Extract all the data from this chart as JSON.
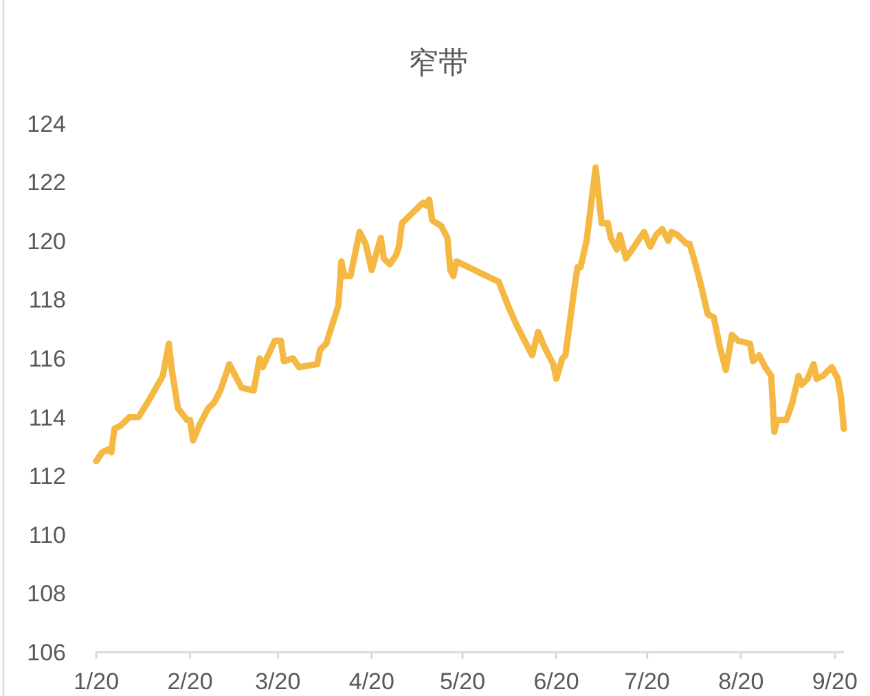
{
  "chart_data": {
    "type": "line",
    "title": "窄带",
    "x": [
      "2020-01-01",
      "2020-01-03",
      "2020-01-05",
      "2020-01-06",
      "2020-01-07",
      "2020-01-09",
      "2020-01-12",
      "2020-01-15",
      "2020-01-18",
      "2020-01-23",
      "2020-01-25",
      "2020-01-26",
      "2020-01-28",
      "2020-01-31",
      "2020-02-01",
      "2020-02-02",
      "2020-02-04",
      "2020-02-07",
      "2020-02-09",
      "2020-02-11",
      "2020-02-14",
      "2020-02-18",
      "2020-02-22",
      "2020-02-24",
      "2020-02-25",
      "2020-02-29",
      "2020-03-02",
      "2020-03-03",
      "2020-03-06",
      "2020-03-08",
      "2020-03-14",
      "2020-03-15",
      "2020-03-17",
      "2020-03-21",
      "2020-03-22",
      "2020-03-23",
      "2020-03-25",
      "2020-03-28",
      "2020-03-30",
      "2020-04-01",
      "2020-04-04",
      "2020-04-05",
      "2020-04-07",
      "2020-04-09",
      "2020-04-10",
      "2020-04-11",
      "2020-04-14",
      "2020-04-18",
      "2020-04-19",
      "2020-04-20",
      "2020-04-21",
      "2020-04-24",
      "2020-04-26",
      "2020-04-27",
      "2020-04-28",
      "2020-04-29",
      "2020-05-13",
      "2020-05-16",
      "2020-05-19",
      "2020-05-24",
      "2020-05-26",
      "2020-05-28",
      "2020-05-31",
      "2020-06-01",
      "2020-06-03",
      "2020-06-04",
      "2020-06-07",
      "2020-06-08",
      "2020-06-09",
      "2020-06-11",
      "2020-06-14",
      "2020-06-15",
      "2020-06-16",
      "2020-06-18",
      "2020-06-19",
      "2020-06-21",
      "2020-06-22",
      "2020-06-24",
      "2020-06-28",
      "2020-06-30",
      "2020-07-02",
      "2020-07-04",
      "2020-07-06",
      "2020-07-08",
      "2020-07-09",
      "2020-07-11",
      "2020-07-14",
      "2020-07-15",
      "2020-07-17",
      "2020-07-19",
      "2020-07-21",
      "2020-07-23",
      "2020-07-25",
      "2020-07-27",
      "2020-07-29",
      "2020-07-31",
      "2020-08-04",
      "2020-08-05",
      "2020-08-07",
      "2020-08-09",
      "2020-08-11",
      "2020-08-12",
      "2020-08-13",
      "2020-08-16",
      "2020-08-18",
      "2020-08-20",
      "2020-08-21",
      "2020-08-23",
      "2020-08-25",
      "2020-08-26",
      "2020-08-28",
      "2020-08-31",
      "2020-09-02",
      "2020-09-03",
      "2020-09-04"
    ],
    "values": [
      112.5,
      112.8,
      112.9,
      112.8,
      113.6,
      113.7,
      114.0,
      114.0,
      114.5,
      115.4,
      116.5,
      115.6,
      114.3,
      113.9,
      113.9,
      113.2,
      113.7,
      114.3,
      114.5,
      114.9,
      115.8,
      115.0,
      114.9,
      116.0,
      115.7,
      116.6,
      116.6,
      115.9,
      116.0,
      115.7,
      115.8,
      116.3,
      116.5,
      117.8,
      119.3,
      118.8,
      118.8,
      120.3,
      119.9,
      119.0,
      120.1,
      119.4,
      119.2,
      119.5,
      119.8,
      120.6,
      120.9,
      121.3,
      121.2,
      121.4,
      120.7,
      120.5,
      120.1,
      119.0,
      118.8,
      119.3,
      118.6,
      117.8,
      117.1,
      116.1,
      116.9,
      116.4,
      115.8,
      115.3,
      116.0,
      116.1,
      118.4,
      119.1,
      119.1,
      120.0,
      122.5,
      121.5,
      120.6,
      120.6,
      120.1,
      119.7,
      120.2,
      119.4,
      120.0,
      120.3,
      119.8,
      120.2,
      120.4,
      120.0,
      120.3,
      120.2,
      119.9,
      119.9,
      119.2,
      118.4,
      117.5,
      117.4,
      116.4,
      115.6,
      116.8,
      116.6,
      116.5,
      115.9,
      116.1,
      115.7,
      115.4,
      113.5,
      113.9,
      113.9,
      114.5,
      115.4,
      115.1,
      115.3,
      115.8,
      115.3,
      115.4,
      115.7,
      115.3,
      114.7,
      113.6
    ],
    "color": "#f5b843",
    "line_style": "solid",
    "xlim": [
      "2020-01-01",
      "2020-09-04"
    ],
    "xticks": [
      {
        "value": "2020-01-01",
        "label": "1/20"
      },
      {
        "value": "2020-02-01",
        "label": "2/20"
      },
      {
        "value": "2020-03-01",
        "label": "3/20"
      },
      {
        "value": "2020-04-01",
        "label": "4/20"
      },
      {
        "value": "2020-05-01",
        "label": "5/20"
      },
      {
        "value": "2020-06-01",
        "label": "6/20"
      },
      {
        "value": "2020-07-01",
        "label": "7/20"
      },
      {
        "value": "2020-08-01",
        "label": "8/20"
      },
      {
        "value": "2020-09-01",
        "label": "9/20"
      }
    ],
    "ylim": [
      106,
      124
    ],
    "yticks": [
      106,
      108,
      110,
      112,
      114,
      116,
      118,
      120,
      122,
      124
    ]
  }
}
